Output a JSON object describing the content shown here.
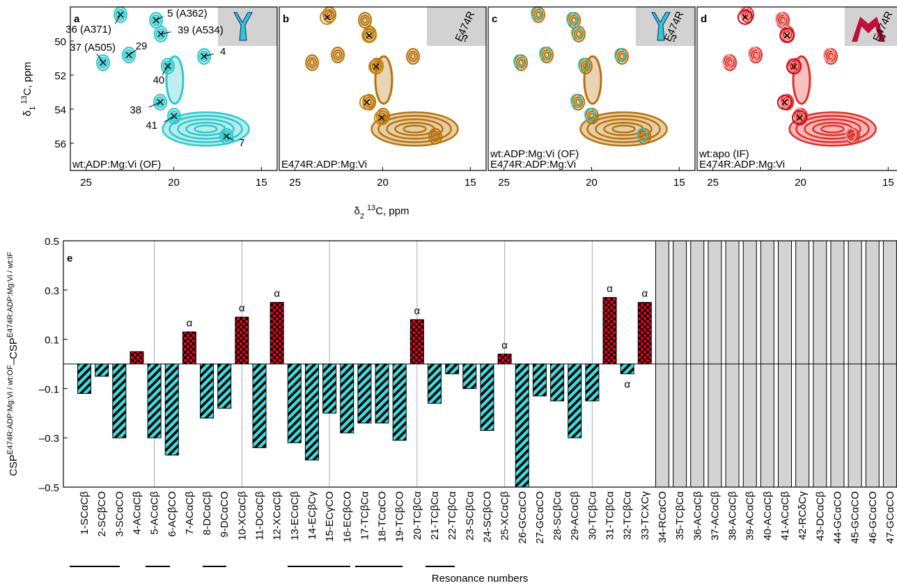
{
  "chart_data": [
    {
      "type": "spectrum",
      "label": "a",
      "legend": [
        "wt:ADP:Mg:Vi (OF)"
      ],
      "contour_color": "#2fc8cc",
      "xlim": [
        25.9,
        14.1
      ],
      "xticks": [
        25,
        20,
        15
      ],
      "ylim": [
        48,
        57.6
      ],
      "yticks": [
        50,
        52,
        54,
        56
      ],
      "xlabel": [
        "δ",
        "2",
        "13",
        "C, ppm"
      ],
      "ylabel": [
        "δ",
        "1",
        "13",
        "C, ppm"
      ],
      "peaks": {
        "labels": [
          "36 (A371)",
          "5 (A362)",
          "39 (A534)",
          "37 (A505)",
          "29",
          "4",
          "40",
          "38",
          "41",
          "7"
        ],
        "x": [
          23.04,
          21.01,
          20.74,
          24.03,
          22.56,
          18.27,
          20.34,
          20.77,
          19.98,
          17.0
        ],
        "y": [
          48.45,
          48.78,
          49.59,
          51.27,
          50.82,
          50.9,
          51.47,
          53.59,
          54.41,
          55.59
        ]
      }
    },
    {
      "type": "spectrum",
      "label": "b",
      "legend": [
        "E474R:ADP:Mg:Vi"
      ],
      "contour_color": "#b8720a",
      "inset_label": "E474R",
      "xlim": [
        25.9,
        14.1
      ],
      "xticks": [
        25,
        20,
        15
      ],
      "ylim": [
        48,
        57.6
      ],
      "circles": {
        "color": "#c8860d",
        "x": [
          23.16,
          20.77,
          20.38,
          20.9,
          20.06
        ],
        "y": [
          48.6,
          49.67,
          51.5,
          53.6,
          54.5
        ]
      }
    },
    {
      "type": "spectrum",
      "label": "c",
      "legend": [
        "wt:ADP:Mg:Vi (OF)",
        "E474R:ADP:Mg:Vi"
      ],
      "contour_color": "#b8720a",
      "inset_label": "E474R",
      "xlim": [
        25.9,
        14.1
      ],
      "xticks": [
        25,
        20,
        15
      ],
      "ylim": [
        48,
        57.6
      ]
    },
    {
      "type": "spectrum",
      "label": "d",
      "legend": [
        "wt:apo (IF)",
        "E474R:ADP:Mg:Vi"
      ],
      "contour_color": "#e0302a",
      "inset_label": "E474R",
      "xlim": [
        25.9,
        14.1
      ],
      "xticks": [
        25,
        20,
        15
      ],
      "ylim": [
        48,
        57.6
      ],
      "circles": {
        "color": "#d0021b",
        "x": [
          23.16,
          20.77,
          20.38,
          20.9,
          20.06
        ],
        "y": [
          48.6,
          49.67,
          51.5,
          53.6,
          54.5
        ]
      }
    },
    {
      "type": "bar",
      "label": "e",
      "xlabel": "Resonance numbers",
      "ylabel": [
        "CSP",
        "E474R:ADP:Mg:Vi / wt:OF",
        "–CSP",
        "E474R:ADP:Mg:Vi / wt:IF"
      ],
      "ylim": [
        -0.5,
        0.5
      ],
      "yticks": [
        {
          "value": -0.5,
          "label": "–0.5"
        },
        {
          "value": -0.3,
          "label": "–0.3"
        },
        {
          "value": -0.1,
          "label": "–0.1"
        },
        0.1,
        0.3,
        0.5
      ],
      "positive_color": "#e8001c",
      "negative_color": "#3ddbdd",
      "missing_color": "#d3d3d3",
      "categories": [
        "1-SCαCβ",
        "2-SCβCO",
        "3-SCαCO",
        "4-ACαCβ",
        "5-ACαCβ",
        "6-ACβCO",
        "7-ACαCβ",
        "8-DCαCβ",
        "9-DCαCO",
        "10-XCαCβ",
        "11-DCαCβ",
        "12-XCαCβ",
        "13-ECαCβ",
        "14-ECβCγ",
        "15-ECγCO",
        "16-ECβCO",
        "17-TCβCα",
        "18-TCαCO",
        "19-TCβCO",
        "20-TCβCα",
        "21-TCβCα",
        "22-TCβCα",
        "23-SCβCα",
        "24-SCβCO",
        "25-XCαCβ",
        "26-GCαCO",
        "27-GCαCO",
        "28-SCβCα",
        "29-ACαCβ",
        "30-TCβCα",
        "31-TCβCα",
        "32-TCβCα",
        "33-TCXCγ",
        "34-RCαCO",
        "35-TCβCα",
        "36-ACαCβ",
        "37-ACαCβ",
        "38-ACαCβ",
        "39-ACαCβ",
        "40-ACαCβ",
        "41-ACαCβ",
        "42-RCδCγ",
        "43-DCαCβ",
        "44-GCαCO",
        "45-GCαCO",
        "46-GCαCO",
        "47-GCαCO"
      ],
      "values": [
        -0.12,
        -0.05,
        -0.3,
        0.05,
        -0.3,
        -0.37,
        0.13,
        -0.22,
        -0.18,
        0.19,
        -0.34,
        0.25,
        -0.32,
        -0.39,
        -0.2,
        -0.28,
        -0.24,
        -0.24,
        -0.31,
        0.18,
        -0.16,
        -0.04,
        -0.1,
        -0.27,
        0.04,
        -0.5,
        -0.13,
        -0.15,
        -0.3,
        -0.15,
        0.27,
        -0.04,
        0.25,
        null,
        null,
        null,
        null,
        null,
        null,
        null,
        null,
        null,
        null,
        null,
        null,
        null,
        null
      ],
      "annotations": [
        null,
        null,
        null,
        null,
        null,
        null,
        "α",
        null,
        null,
        "α",
        null,
        "α",
        null,
        null,
        null,
        null,
        null,
        null,
        null,
        "α",
        null,
        null,
        null,
        null,
        "α",
        null,
        null,
        null,
        null,
        null,
        "α",
        "α",
        "α",
        null,
        null,
        null,
        null,
        null,
        null,
        null,
        null,
        null,
        null,
        null,
        null,
        null,
        null
      ]
    }
  ]
}
